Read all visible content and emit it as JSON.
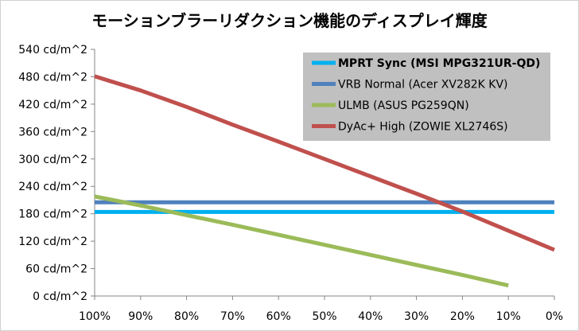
{
  "chart_data": {
    "type": "line",
    "title": "モーションブラーリダクション機能のディスプレイ輝度",
    "xlabel": "",
    "ylabel": "",
    "x_categories": [
      "100%",
      "90%",
      "80%",
      "70%",
      "60%",
      "50%",
      "40%",
      "30%",
      "20%",
      "10%",
      "0%"
    ],
    "x_values": [
      100,
      90,
      80,
      70,
      60,
      50,
      40,
      30,
      20,
      10,
      0
    ],
    "xlim": [
      100,
      0
    ],
    "ylim": [
      0,
      540
    ],
    "y_ticks": [
      0,
      60,
      120,
      180,
      240,
      300,
      360,
      420,
      480,
      540
    ],
    "y_tick_labels": [
      "0 cd/m^2",
      "60 cd/m^2",
      "120 cd/m^2",
      "180 cd/m^2",
      "240 cd/m^2",
      "300 cd/m^2",
      "360 cd/m^2",
      "420 cd/m^2",
      "480 cd/m^2",
      "540 cd/m^2"
    ],
    "grid": false,
    "legend_position": "top-right",
    "series": [
      {
        "name": "MPRT Sync (MSI MPG321UR-QD)",
        "color": "#00B0F0",
        "bold": true,
        "points": [
          [
            100,
            184
          ],
          [
            0,
            184
          ]
        ]
      },
      {
        "name": "VRB Normal (Acer XV282K KV)",
        "color": "#4F81BD",
        "bold": false,
        "points": [
          [
            100,
            205
          ],
          [
            0,
            205
          ]
        ]
      },
      {
        "name": "ULMB (ASUS PG259QN)",
        "color": "#9BBB59",
        "bold": false,
        "points": [
          [
            100,
            218
          ],
          [
            90,
            198
          ],
          [
            80,
            177
          ],
          [
            70,
            156
          ],
          [
            60,
            134
          ],
          [
            50,
            112
          ],
          [
            40,
            90
          ],
          [
            30,
            68
          ],
          [
            20,
            46
          ],
          [
            10,
            23
          ]
        ]
      },
      {
        "name": "DyAc+ High (ZOWIE XL2746S)",
        "color": "#C0504D",
        "bold": false,
        "points": [
          [
            100,
            481
          ],
          [
            90,
            450
          ],
          [
            80,
            414
          ],
          [
            70,
            375
          ],
          [
            60,
            338
          ],
          [
            50,
            300
          ],
          [
            40,
            262
          ],
          [
            30,
            224
          ],
          [
            20,
            185
          ],
          [
            10,
            143
          ],
          [
            0,
            101
          ]
        ]
      }
    ]
  }
}
